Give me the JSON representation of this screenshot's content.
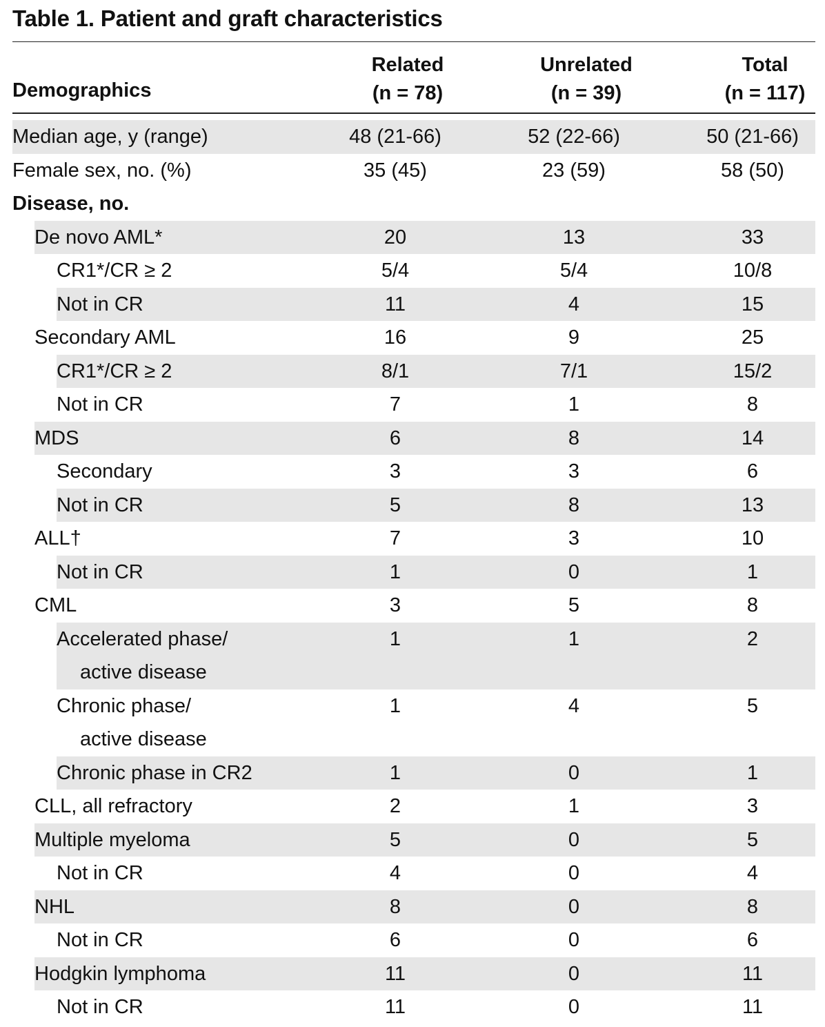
{
  "title": "Table 1. Patient and graft characteristics",
  "header": {
    "demographics": "Demographics",
    "related": "Related",
    "related_n": "(n = 78)",
    "unrelated": "Unrelated",
    "unrelated_n": "(n = 39)",
    "total": "Total",
    "total_n": "(n = 117)"
  },
  "rows": [
    {
      "label": "Median age, y (range)",
      "related": "48 (21-66)",
      "unrelated": "52 (22-66)",
      "total": "50 (21-66)"
    },
    {
      "label": "Female sex, no. (%)",
      "related": "35 (45)",
      "unrelated": "23 (59)",
      "total": "58 (50)"
    },
    {
      "label": "Disease, no.",
      "related": "",
      "unrelated": "",
      "total": ""
    },
    {
      "label": "De novo AML*",
      "related": "20",
      "unrelated": "13",
      "total": "33"
    },
    {
      "label": "CR1*/CR ≥ 2",
      "related": "5/4",
      "unrelated": "5/4",
      "total": "10/8"
    },
    {
      "label": "Not in CR",
      "related": "11",
      "unrelated": "4",
      "total": "15"
    },
    {
      "label": "Secondary AML",
      "related": "16",
      "unrelated": "9",
      "total": "25"
    },
    {
      "label": "CR1*/CR ≥ 2",
      "related": "8/1",
      "unrelated": "7/1",
      "total": "15/2"
    },
    {
      "label": "Not in CR",
      "related": "7",
      "unrelated": "1",
      "total": "8"
    },
    {
      "label": "MDS",
      "related": "6",
      "unrelated": "8",
      "total": "14"
    },
    {
      "label": "Secondary",
      "related": "3",
      "unrelated": "3",
      "total": "6"
    },
    {
      "label": "Not in CR",
      "related": "5",
      "unrelated": "8",
      "total": "13"
    },
    {
      "label": "ALL†",
      "related": "7",
      "unrelated": "3",
      "total": "10"
    },
    {
      "label": "Not in CR",
      "related": "1",
      "unrelated": "0",
      "total": "1"
    },
    {
      "label": "CML",
      "related": "3",
      "unrelated": "5",
      "total": "8"
    },
    {
      "label": "Accelerated phase/",
      "label2": "active disease",
      "related": "1",
      "unrelated": "1",
      "total": "2"
    },
    {
      "label": "Chronic phase/",
      "label2": "active disease",
      "related": "1",
      "unrelated": "4",
      "total": "5"
    },
    {
      "label": "Chronic phase in CR2",
      "related": "1",
      "unrelated": "0",
      "total": "1"
    },
    {
      "label": "CLL, all refractory",
      "related": "2",
      "unrelated": "1",
      "total": "3"
    },
    {
      "label": "Multiple myeloma",
      "related": "5",
      "unrelated": "0",
      "total": "5"
    },
    {
      "label": "Not in CR",
      "related": "4",
      "unrelated": "0",
      "total": "4"
    },
    {
      "label": "NHL",
      "related": "8",
      "unrelated": "0",
      "total": "8"
    },
    {
      "label": "Not in CR",
      "related": "6",
      "unrelated": "0",
      "total": "6"
    },
    {
      "label": "Hodgkin lymphoma",
      "related": "11",
      "unrelated": "0",
      "total": "11"
    },
    {
      "label": "Not in CR",
      "related": "11",
      "unrelated": "0",
      "total": "11"
    }
  ]
}
